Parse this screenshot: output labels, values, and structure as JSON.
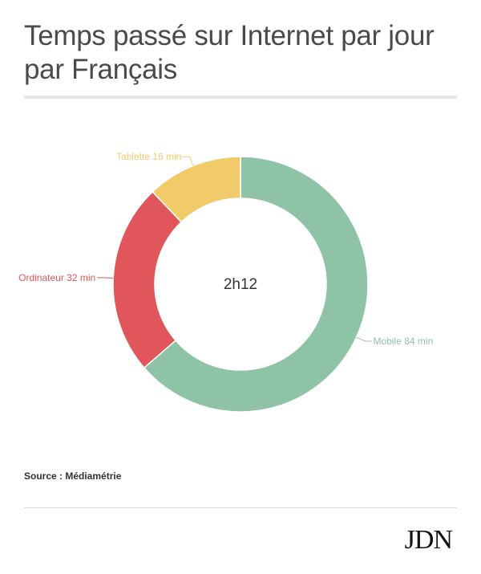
{
  "header": {
    "title": "Temps passé sur Internet par jour par Français"
  },
  "chart_data": {
    "type": "pie",
    "variant": "donut",
    "title": "Temps passé sur Internet par jour par Français",
    "center_label": "2h12",
    "slices": [
      {
        "label": "Mobile 84 min",
        "category": "Mobile",
        "value": 84,
        "color": "#8fc3a8"
      },
      {
        "label": "Ordinateur 32 min",
        "category": "Ordinateur",
        "value": 32,
        "color": "#e0565a"
      },
      {
        "label": "Tablette 16 min",
        "category": "Tablette",
        "value": 16,
        "color": "#f1ca6a"
      }
    ]
  },
  "footer": {
    "source": "Source : Médiamétrie",
    "logo": "JDN"
  }
}
